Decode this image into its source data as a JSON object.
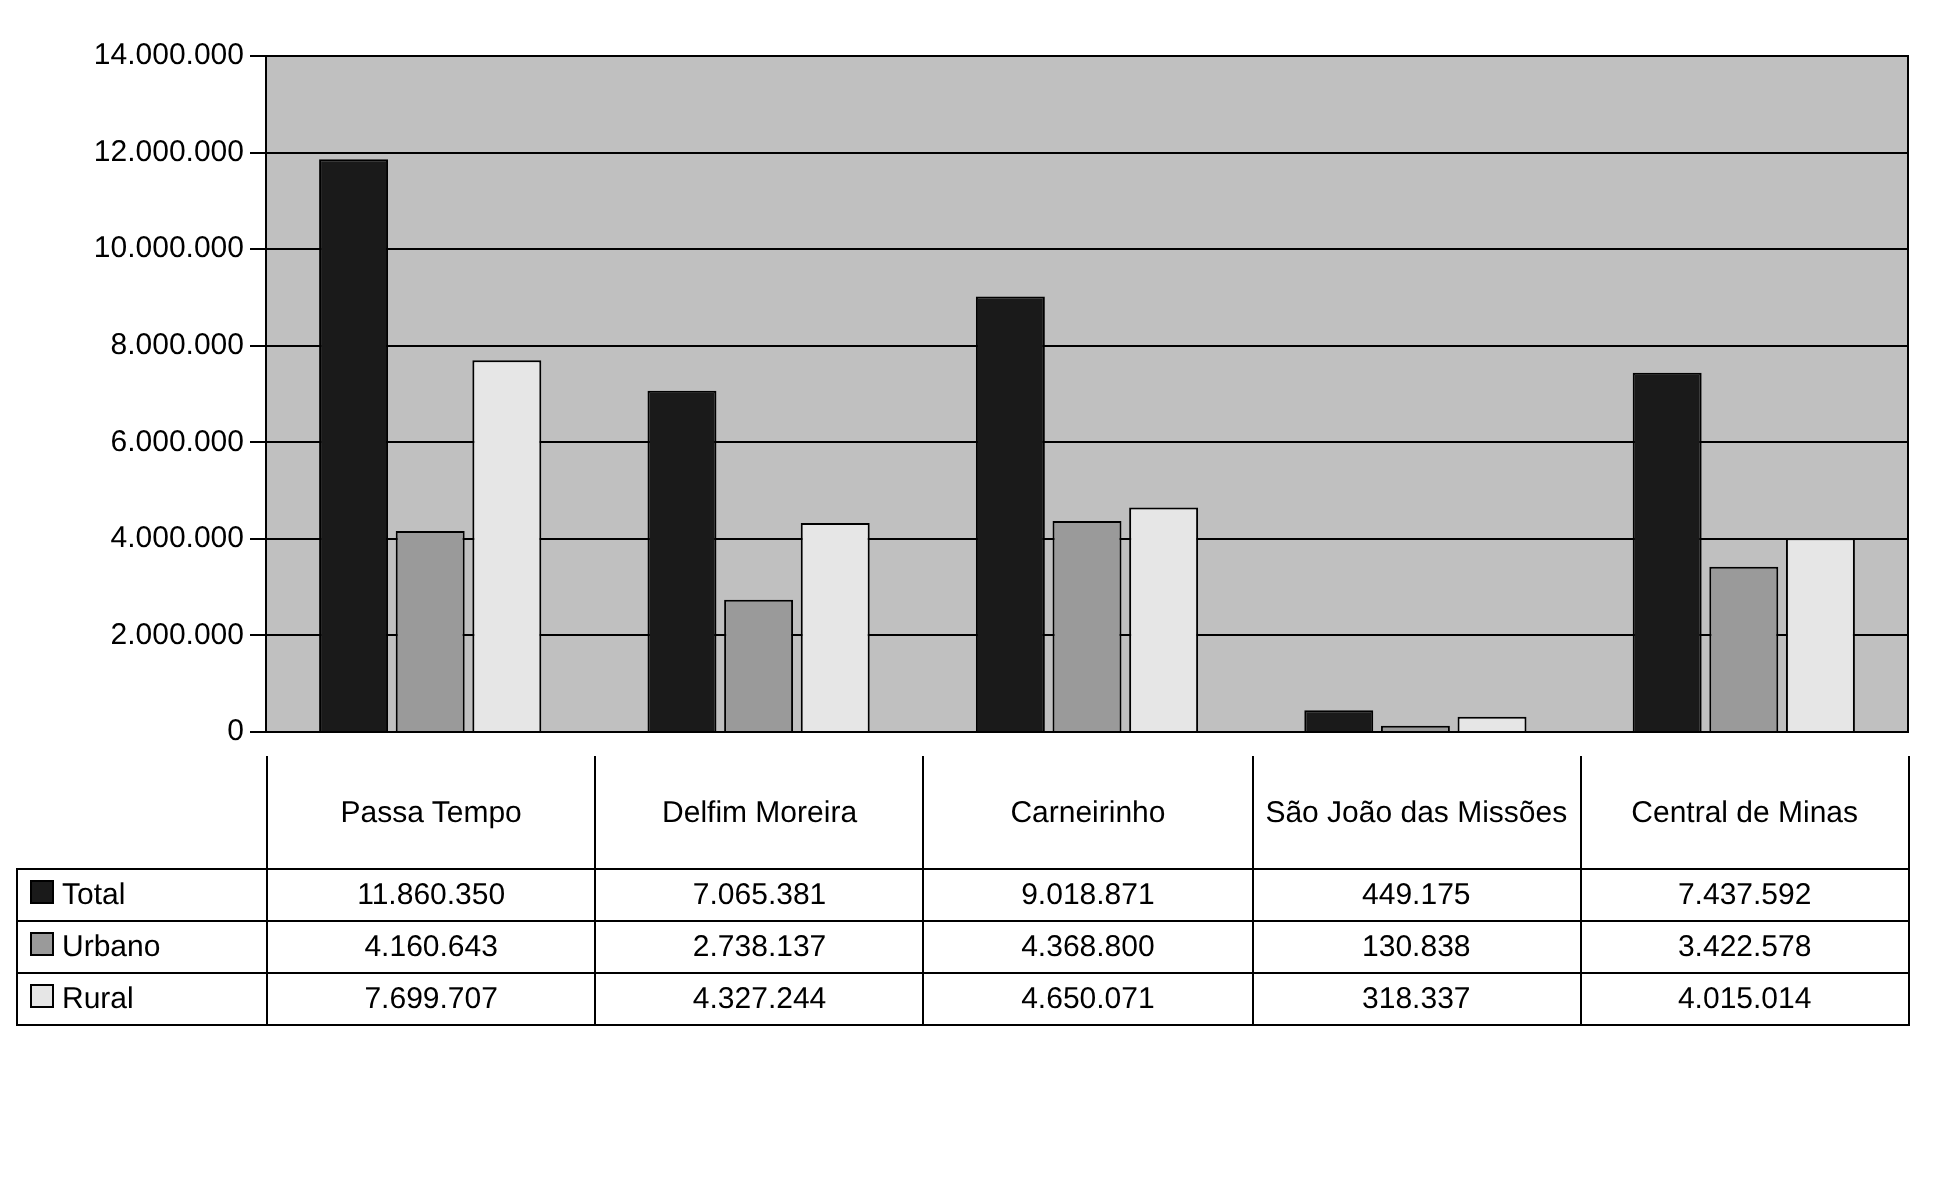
{
  "chart_data": {
    "type": "bar",
    "categories": [
      "Passa Tempo",
      "Delfim Moreira",
      "Carneirinho",
      "São João das Missões",
      "Central de Minas"
    ],
    "series": [
      {
        "name": "Total",
        "color": "#1a1a1a",
        "values": [
          11860350,
          7065381,
          9018871,
          449175,
          7437592
        ],
        "value_labels": [
          "11.860.350",
          "7.065.381",
          "9.018.871",
          "449.175",
          "7.437.592"
        ]
      },
      {
        "name": "Urbano",
        "color": "#9a9a9a",
        "values": [
          4160643,
          2738137,
          4368800,
          130838,
          3422578
        ],
        "value_labels": [
          "4.160.643",
          "2.738.137",
          "4.368.800",
          "130.838",
          "3.422.578"
        ]
      },
      {
        "name": "Rural",
        "color": "#e6e6e6",
        "values": [
          7699707,
          4327244,
          4650071,
          318337,
          4015014
        ],
        "value_labels": [
          "7.699.707",
          "4.327.244",
          "4.650.071",
          "318.337",
          "4.015.014"
        ]
      }
    ],
    "ylim": [
      0,
      14000000
    ],
    "yticks": [
      0,
      {
        "value": 2000000,
        "label": "2.000.000"
      },
      {
        "value": 4000000,
        "label": "4.000.000"
      },
      {
        "value": 6000000,
        "label": "6.000.000"
      },
      {
        "value": 8000000,
        "label": "8.000.000"
      },
      {
        "value": 10000000,
        "label": "10.000.000"
      },
      {
        "value": 12000000,
        "label": "12.000.000"
      },
      {
        "value": 14000000,
        "label": "14.000.000"
      }
    ],
    "grid": "y",
    "legend": "bottom"
  }
}
